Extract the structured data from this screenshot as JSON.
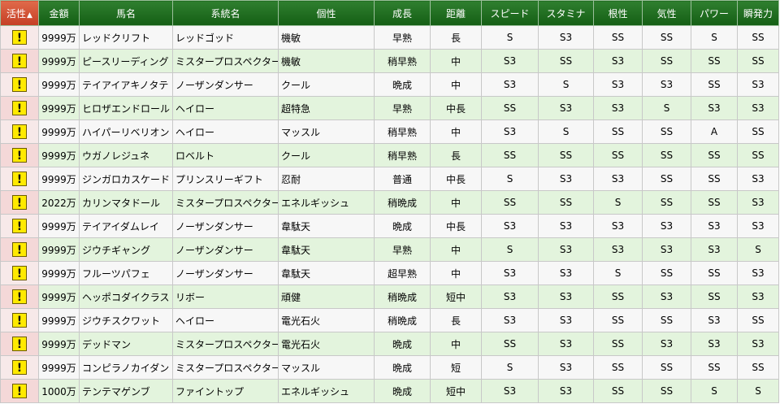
{
  "table": {
    "columns": [
      {
        "key": "activity",
        "label": "活性",
        "sort_indicator": "▲",
        "sorted": true
      },
      {
        "key": "price",
        "label": "金額"
      },
      {
        "key": "name",
        "label": "馬名"
      },
      {
        "key": "lineage",
        "label": "系統名"
      },
      {
        "key": "trait",
        "label": "個性"
      },
      {
        "key": "growth",
        "label": "成長"
      },
      {
        "key": "distance",
        "label": "距離"
      },
      {
        "key": "speed",
        "label": "スピード"
      },
      {
        "key": "stamina",
        "label": "スタミナ"
      },
      {
        "key": "guts",
        "label": "根性"
      },
      {
        "key": "temper",
        "label": "気性"
      },
      {
        "key": "power",
        "label": "パワー"
      },
      {
        "key": "burst",
        "label": "瞬発力"
      }
    ],
    "alert_glyph": "!",
    "rows": [
      {
        "price": "9999万",
        "name": "レッドクリフト",
        "lineage": "レッドゴッド",
        "trait": "機敏",
        "growth": "早熟",
        "distance": "長",
        "speed": "S",
        "stamina": "S3",
        "guts": "SS",
        "temper": "SS",
        "power": "S",
        "burst": "SS"
      },
      {
        "price": "9999万",
        "name": "ピースリーディング",
        "lineage": "ミスタープロスペクター",
        "trait": "機敏",
        "growth": "稍早熟",
        "distance": "中",
        "speed": "S3",
        "stamina": "SS",
        "guts": "S3",
        "temper": "SS",
        "power": "SS",
        "burst": "SS"
      },
      {
        "price": "9999万",
        "name": "テイアイアキノタテ",
        "lineage": "ノーザンダンサー",
        "trait": "クール",
        "growth": "晩成",
        "distance": "中",
        "speed": "S3",
        "stamina": "S",
        "guts": "S3",
        "temper": "S3",
        "power": "SS",
        "burst": "S3"
      },
      {
        "price": "9999万",
        "name": "ヒロザエンドロール",
        "lineage": "ヘイロー",
        "trait": "超特急",
        "growth": "早熟",
        "distance": "中長",
        "speed": "SS",
        "stamina": "S3",
        "guts": "S3",
        "temper": "S",
        "power": "S3",
        "burst": "S3"
      },
      {
        "price": "9999万",
        "name": "ハイパーリベリオン",
        "lineage": "ヘイロー",
        "trait": "マッスル",
        "growth": "稍早熟",
        "distance": "中",
        "speed": "S3",
        "stamina": "S",
        "guts": "SS",
        "temper": "SS",
        "power": "A",
        "burst": "SS"
      },
      {
        "price": "9999万",
        "name": "ウガノレジュネ",
        "lineage": "ロベルト",
        "trait": "クール",
        "growth": "稍早熟",
        "distance": "長",
        "speed": "SS",
        "stamina": "SS",
        "guts": "SS",
        "temper": "SS",
        "power": "SS",
        "burst": "SS"
      },
      {
        "price": "9999万",
        "name": "ジンガロカスケード",
        "lineage": "プリンスリーギフト",
        "trait": "忍耐",
        "growth": "普通",
        "distance": "中長",
        "speed": "S",
        "stamina": "S3",
        "guts": "S3",
        "temper": "SS",
        "power": "SS",
        "burst": "S3"
      },
      {
        "price": "2022万",
        "name": "カリンマタドール",
        "lineage": "ミスタープロスペクター",
        "trait": "エネルギッシュ",
        "growth": "稍晩成",
        "distance": "中",
        "speed": "SS",
        "stamina": "SS",
        "guts": "S",
        "temper": "SS",
        "power": "SS",
        "burst": "S3"
      },
      {
        "price": "9999万",
        "name": "テイアイダムレイ",
        "lineage": "ノーザンダンサー",
        "trait": "韋駄天",
        "growth": "晩成",
        "distance": "中長",
        "speed": "S3",
        "stamina": "S3",
        "guts": "S3",
        "temper": "S3",
        "power": "S3",
        "burst": "S3"
      },
      {
        "price": "9999万",
        "name": "ジウチギャング",
        "lineage": "ノーザンダンサー",
        "trait": "韋駄天",
        "growth": "早熟",
        "distance": "中",
        "speed": "S",
        "stamina": "S3",
        "guts": "S3",
        "temper": "S3",
        "power": "S3",
        "burst": "S"
      },
      {
        "price": "9999万",
        "name": "フルーツパフェ",
        "lineage": "ノーザンダンサー",
        "trait": "韋駄天",
        "growth": "超早熟",
        "distance": "中",
        "speed": "S3",
        "stamina": "S3",
        "guts": "S",
        "temper": "SS",
        "power": "SS",
        "burst": "S3"
      },
      {
        "price": "9999万",
        "name": "ヘッポコダイクラス",
        "lineage": "リボー",
        "trait": "頑健",
        "growth": "稍晩成",
        "distance": "短中",
        "speed": "S3",
        "stamina": "S3",
        "guts": "SS",
        "temper": "S3",
        "power": "SS",
        "burst": "S3"
      },
      {
        "price": "9999万",
        "name": "ジウチスクワット",
        "lineage": "ヘイロー",
        "trait": "電光石火",
        "growth": "稍晩成",
        "distance": "長",
        "speed": "S3",
        "stamina": "S3",
        "guts": "SS",
        "temper": "SS",
        "power": "S3",
        "burst": "SS"
      },
      {
        "price": "9999万",
        "name": "デッドマン",
        "lineage": "ミスタープロスペクター",
        "trait": "電光石火",
        "growth": "晩成",
        "distance": "中",
        "speed": "SS",
        "stamina": "S3",
        "guts": "SS",
        "temper": "S3",
        "power": "S3",
        "burst": "S3"
      },
      {
        "price": "9999万",
        "name": "コンピラノカイダン",
        "lineage": "ミスタープロスペクター",
        "trait": "マッスル",
        "growth": "晩成",
        "distance": "短",
        "speed": "S",
        "stamina": "S3",
        "guts": "SS",
        "temper": "SS",
        "power": "SS",
        "burst": "SS"
      },
      {
        "price": "1000万",
        "name": "テンテマゲンブ",
        "lineage": "ファイントップ",
        "trait": "エネルギッシュ",
        "growth": "晩成",
        "distance": "短中",
        "speed": "S3",
        "stamina": "S3",
        "guts": "SS",
        "temper": "SS",
        "power": "S",
        "burst": "S"
      }
    ]
  }
}
